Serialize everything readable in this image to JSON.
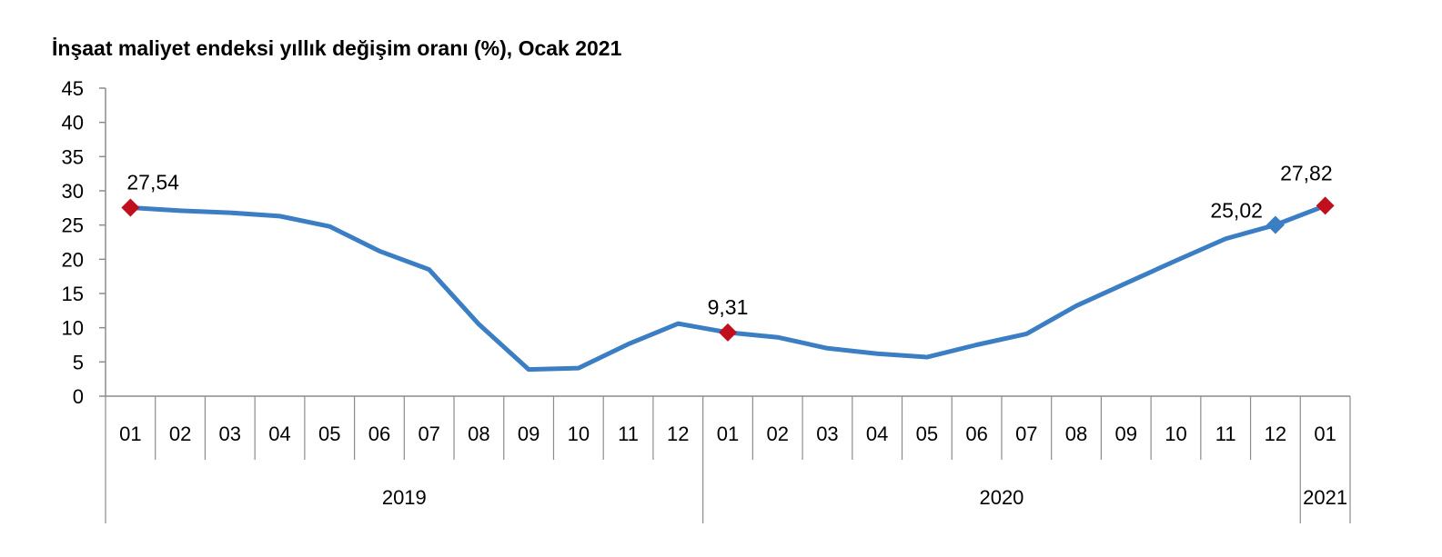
{
  "chart_data": {
    "type": "line",
    "title": "İnşaat maliyet endeksi yıllık değişim oranı (%), Ocak 2021",
    "xlabel": "",
    "ylabel": "",
    "ylim": [
      0,
      45
    ],
    "yticks": [
      "0",
      "5",
      "10",
      "15",
      "20",
      "25",
      "30",
      "35",
      "40",
      "45"
    ],
    "categories": [
      "01",
      "02",
      "03",
      "04",
      "05",
      "06",
      "07",
      "08",
      "09",
      "10",
      "11",
      "12",
      "01",
      "02",
      "03",
      "04",
      "05",
      "06",
      "07",
      "08",
      "09",
      "10",
      "11",
      "12",
      "01"
    ],
    "year_groups": [
      {
        "label": "2019",
        "count": 12
      },
      {
        "label": "2020",
        "count": 12
      },
      {
        "label": "2021",
        "count": 1
      }
    ],
    "series": [
      {
        "values": [
          27.54,
          27.1,
          26.8,
          26.3,
          24.8,
          21.2,
          18.5,
          10.5,
          3.9,
          4.1,
          7.6,
          10.6,
          9.31,
          8.6,
          7.0,
          6.2,
          5.7,
          7.5,
          9.1,
          13.2,
          16.5,
          19.8,
          23.0,
          25.02,
          27.82
        ],
        "color": "#3b7ec4"
      }
    ],
    "highlighted_points": [
      {
        "index": 0,
        "label": "27,54",
        "marker": "diamond",
        "color": "#c0101e"
      },
      {
        "index": 12,
        "label": "9,31",
        "marker": "diamond",
        "color": "#c0101e"
      },
      {
        "index": 23,
        "label": "25,02",
        "marker": "diamond",
        "color": "#3b7ec4"
      },
      {
        "index": 24,
        "label": "27,82",
        "marker": "diamond",
        "color": "#c0101e"
      }
    ],
    "grid": false,
    "legend": "none"
  }
}
